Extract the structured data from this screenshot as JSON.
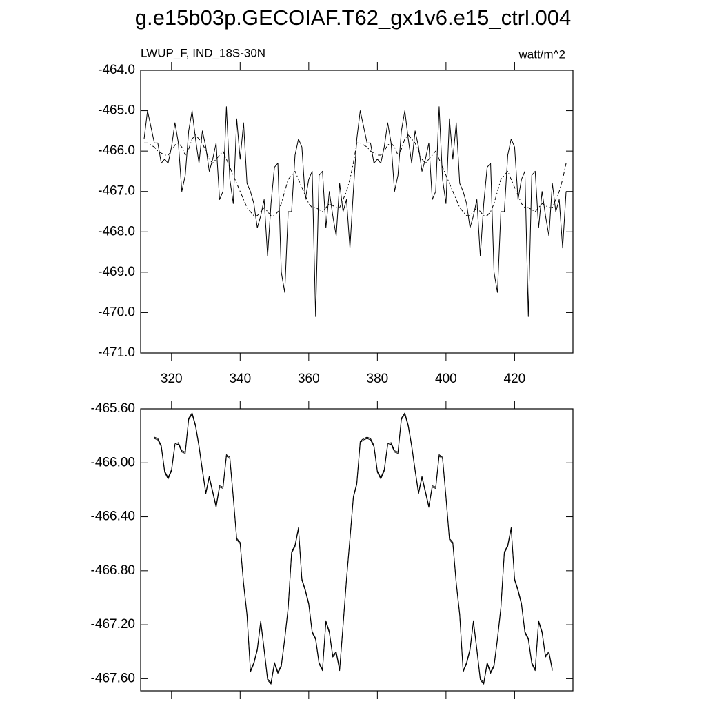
{
  "chart_data": [
    {
      "type": "line",
      "title": "g.e15b03p.GECOIAF.T62_gx1v6.e15_ctrl.004",
      "left_string": "LWUP_F, IND_18S-30N",
      "right_string": "watt/m^2",
      "x": [
        312,
        313,
        314,
        315,
        316,
        317,
        318,
        319,
        320,
        321,
        322,
        323,
        324,
        325,
        326,
        327,
        328,
        329,
        330,
        331,
        332,
        333,
        334,
        335,
        336,
        337,
        338,
        339,
        340,
        341,
        342,
        343,
        344,
        345,
        346,
        347,
        348,
        349,
        350,
        351,
        352,
        353,
        354,
        355,
        356,
        357,
        358,
        359,
        360,
        361,
        362,
        363,
        364,
        365,
        366,
        367,
        368,
        369,
        370,
        371,
        372,
        373,
        374,
        375,
        376,
        377,
        378,
        379,
        380,
        381,
        382,
        383,
        384,
        385,
        386,
        387,
        388,
        389,
        390,
        391,
        392,
        393,
        394,
        395,
        396,
        397,
        398,
        399,
        400,
        401,
        402,
        403,
        404,
        405,
        406,
        407,
        408,
        409,
        410,
        411,
        412,
        413,
        414,
        415,
        416,
        417,
        418,
        419,
        420,
        421,
        422,
        423,
        424,
        425,
        426,
        427,
        428,
        429,
        430,
        431,
        432,
        433,
        434,
        435
      ],
      "series": [
        {
          "color": "#000000",
          "dash": false,
          "values": [
            -465.7,
            -465.0,
            -465.4,
            -465.8,
            -465.8,
            -466.3,
            -466.2,
            -466.3,
            -465.9,
            -465.3,
            -465.8,
            -467.0,
            -466.6,
            -465.5,
            -465.0,
            -465.7,
            -466.3,
            -465.5,
            -465.9,
            -466.5,
            -466.2,
            -465.8,
            -467.2,
            -467.0,
            -464.9,
            -466.7,
            -467.3,
            -465.2,
            -466.2,
            -465.3,
            -466.8,
            -467.0,
            -467.3,
            -467.9,
            -467.6,
            -467.2,
            -468.6,
            -467.3,
            -466.4,
            -466.3,
            -469.0,
            -469.5,
            -467.5,
            -467.5,
            -466.1,
            -465.7,
            -465.9,
            -467.2,
            -466.7,
            -466.5,
            -470.1,
            -466.6,
            -466.5,
            -467.9,
            -467.0,
            -467.6,
            -468.1,
            -466.8,
            -467.5,
            -467.2,
            -468.4,
            -467.0,
            -465.7,
            -465.0,
            -465.4,
            -465.8,
            -465.8,
            -466.3,
            -466.2,
            -466.3,
            -465.9,
            -465.3,
            -465.8,
            -467.0,
            -466.6,
            -465.5,
            -465.0,
            -465.7,
            -466.3,
            -465.5,
            -465.9,
            -466.5,
            -466.2,
            -465.8,
            -467.2,
            -467.0,
            -464.9,
            -466.7,
            -467.3,
            -465.2,
            -466.2,
            -465.3,
            -466.8,
            -467.0,
            -467.3,
            -467.9,
            -467.6,
            -467.2,
            -468.6,
            -467.3,
            -466.4,
            -466.3,
            -469.0,
            -469.5,
            -467.5,
            -467.5,
            -466.1,
            -465.7,
            -465.9,
            -467.2,
            -466.7,
            -466.5,
            -470.1,
            -466.6,
            -466.5,
            -467.9,
            -467.0,
            -467.6,
            -468.1,
            -466.8,
            -467.5,
            -467.2,
            -468.4,
            -467.0
          ]
        },
        {
          "color": "#000000",
          "dash": true,
          "values": [
            -465.8,
            -465.8,
            -465.85,
            -465.9,
            -466.0,
            -466.05,
            -466.1,
            -466.1,
            -466.0,
            -465.85,
            -465.8,
            -465.9,
            -466.1,
            -465.95,
            -465.7,
            -465.6,
            -465.7,
            -465.8,
            -466.0,
            -466.2,
            -466.3,
            -466.2,
            -466.1,
            -466.0,
            -466.2,
            -466.4,
            -466.6,
            -466.8,
            -467.0,
            -467.2,
            -467.4,
            -467.5,
            -467.6,
            -467.6,
            -467.5,
            -467.4,
            -467.5,
            -467.6,
            -467.6,
            -467.5,
            -467.3,
            -467.0,
            -466.7,
            -466.6,
            -466.5,
            -466.7,
            -466.9,
            -467.1,
            -467.3,
            -467.4,
            -467.4,
            -467.45,
            -467.5,
            -467.4,
            -467.3,
            -467.35,
            -467.4,
            -467.4,
            -467.2,
            -467.0,
            -466.7,
            -466.3,
            -465.8,
            -465.8,
            -465.85,
            -465.9,
            -466.0,
            -466.05,
            -466.1,
            -466.1,
            -466.0,
            -465.85,
            -465.8,
            -465.9,
            -466.1,
            -465.95,
            -465.7,
            -465.6,
            -465.7,
            -465.8,
            -466.0,
            -466.2,
            -466.3,
            -466.2,
            -466.1,
            -466.0,
            -466.2,
            -466.4,
            -466.6,
            -466.8,
            -467.0,
            -467.2,
            -467.4,
            -467.5,
            -467.6,
            -467.6,
            -467.5,
            -467.4,
            -467.5,
            -467.6,
            -467.6,
            -467.5,
            -467.3,
            -467.0,
            -466.7,
            -466.6,
            -466.5,
            -466.7,
            -466.9,
            -467.1,
            -467.3,
            -467.4,
            -467.4,
            -467.45,
            -467.5,
            -467.4,
            -467.3,
            -467.35,
            -467.4,
            -467.4,
            -467.2,
            -467.0,
            -466.7,
            -466.3
          ]
        }
      ],
      "xlim": [
        311,
        437
      ],
      "xticks": [
        320,
        340,
        360,
        380,
        400,
        420
      ],
      "show_xtick_labels": true,
      "ylim": [
        -471,
        -464
      ],
      "yticks": [
        {
          "value": -464,
          "label": "-464.0"
        },
        {
          "value": -465,
          "label": "-465.0"
        },
        {
          "value": -466,
          "label": "-466.0"
        },
        {
          "value": -467,
          "label": "-467.0"
        },
        {
          "value": -468,
          "label": "-468.0"
        },
        {
          "value": -469,
          "label": "-469.0"
        },
        {
          "value": -470,
          "label": "-470.0"
        },
        {
          "value": -471,
          "label": "-471.0"
        }
      ]
    },
    {
      "type": "line",
      "x": [
        315,
        316,
        317,
        318,
        319,
        320,
        321,
        322,
        323,
        324,
        325,
        326,
        327,
        328,
        329,
        330,
        331,
        332,
        333,
        334,
        335,
        336,
        337,
        338,
        339,
        340,
        341,
        342,
        343,
        344,
        345,
        346,
        347,
        348,
        349,
        350,
        351,
        352,
        353,
        354,
        355,
        356,
        357,
        358,
        359,
        360,
        361,
        362,
        363,
        364,
        365,
        366,
        367,
        368,
        369,
        370,
        371,
        372,
        373,
        374,
        375,
        376,
        377,
        378,
        379,
        380,
        381,
        382,
        383,
        384,
        385,
        386,
        387,
        388,
        389,
        390,
        391,
        392,
        393,
        394,
        395,
        396,
        397,
        398,
        399,
        400,
        401,
        402,
        403,
        404,
        405,
        406,
        407,
        408,
        409,
        410,
        411,
        412,
        413,
        414,
        415,
        416,
        417,
        418,
        419,
        420,
        421,
        422,
        423,
        424,
        425,
        426,
        427,
        428,
        429,
        430,
        431
      ],
      "series": [
        {
          "color": "#000000",
          "dash": false,
          "values": [
            -465.81,
            -465.82,
            -465.87,
            -466.06,
            -466.11,
            -466.05,
            -465.86,
            -465.85,
            -465.91,
            -465.92,
            -465.67,
            -465.63,
            -465.72,
            -465.87,
            -466.05,
            -466.22,
            -466.1,
            -466.21,
            -466.32,
            -466.17,
            -466.18,
            -465.94,
            -465.96,
            -466.25,
            -466.56,
            -466.59,
            -466.89,
            -467.12,
            -467.54,
            -467.48,
            -467.38,
            -467.17,
            -467.38,
            -467.6,
            -467.63,
            -467.48,
            -467.55,
            -467.5,
            -467.3,
            -467.07,
            -466.66,
            -466.61,
            -466.48,
            -466.86,
            -466.94,
            -467.04,
            -467.25,
            -467.3,
            -467.48,
            -467.53,
            -467.17,
            -467.25,
            -467.43,
            -467.4,
            -467.53,
            -467.2,
            -466.86,
            -466.56,
            -466.25,
            -466.15,
            -465.84,
            -465.82,
            -465.81,
            -465.82,
            -465.87,
            -466.06,
            -466.11,
            -466.05,
            -465.86,
            -465.85,
            -465.91,
            -465.92,
            -465.67,
            -465.63,
            -465.72,
            -465.87,
            -466.05,
            -466.22,
            -466.1,
            -466.21,
            -466.32,
            -466.17,
            -466.18,
            -465.94,
            -465.96,
            -466.25,
            -466.56,
            -466.59,
            -466.89,
            -467.12,
            -467.54,
            -467.48,
            -467.38,
            -467.17,
            -467.38,
            -467.6,
            -467.63,
            -467.48,
            -467.55,
            -467.5,
            -467.3,
            -467.07,
            -466.66,
            -466.61,
            -466.48,
            -466.86,
            -466.94,
            -467.04,
            -467.25,
            -467.3,
            -467.48,
            -467.53,
            -467.17,
            -467.25,
            -467.43,
            -467.4,
            -467.53
          ]
        },
        {
          "color": "#000000",
          "dash": false,
          "values": [
            -465.82,
            -465.83,
            -465.88,
            -466.07,
            -466.12,
            -466.06,
            -465.87,
            -465.86,
            -465.92,
            -465.93,
            -465.68,
            -465.64,
            -465.73,
            -465.88,
            -466.06,
            -466.23,
            -466.11,
            -466.22,
            -466.33,
            -466.18,
            -466.19,
            -465.95,
            -465.97,
            -466.26,
            -466.57,
            -466.6,
            -466.9,
            -467.13,
            -467.55,
            -467.49,
            -467.39,
            -467.18,
            -467.39,
            -467.61,
            -467.64,
            -467.49,
            -467.56,
            -467.51,
            -467.31,
            -467.08,
            -466.67,
            -466.62,
            -466.49,
            -466.87,
            -466.95,
            -467.05,
            -467.26,
            -467.31,
            -467.49,
            -467.54,
            -467.18,
            -467.26,
            -467.44,
            -467.41,
            -467.54,
            -467.21,
            -466.87,
            -466.57,
            -466.26,
            -466.16,
            -465.85,
            -465.83,
            -465.82,
            -465.83,
            -465.88,
            -466.07,
            -466.12,
            -466.06,
            -465.87,
            -465.86,
            -465.92,
            -465.93,
            -465.68,
            -465.64,
            -465.73,
            -465.88,
            -466.06,
            -466.23,
            -466.11,
            -466.22,
            -466.33,
            -466.18,
            -466.19,
            -465.95,
            -465.97,
            -466.26,
            -466.57,
            -466.6,
            -466.9,
            -467.13,
            -467.55,
            -467.49,
            -467.39,
            -467.18,
            -467.39,
            -467.61,
            -467.64,
            -467.49,
            -467.56,
            -467.51,
            -467.31,
            -467.08,
            -466.67,
            -466.62,
            -466.49,
            -466.87,
            -466.95,
            -467.05,
            -467.26,
            -467.31,
            -467.49,
            -467.54,
            -467.18,
            -467.26,
            -467.44,
            -467.41,
            -467.54
          ]
        }
      ],
      "xlim": [
        311,
        437
      ],
      "xticks": [
        320,
        340,
        360,
        380,
        400,
        420
      ],
      "show_xtick_labels": false,
      "ylim": [
        -467.69,
        -465.6
      ],
      "yticks": [
        {
          "value": -465.6,
          "label": "-465.60"
        },
        {
          "value": -466,
          "label": "-466.00"
        },
        {
          "value": -466.4,
          "label": "-466.40"
        },
        {
          "value": -466.8,
          "label": "-466.80"
        },
        {
          "value": -467.2,
          "label": "-467.20"
        },
        {
          "value": -467.6,
          "label": "-467.60"
        }
      ]
    }
  ]
}
